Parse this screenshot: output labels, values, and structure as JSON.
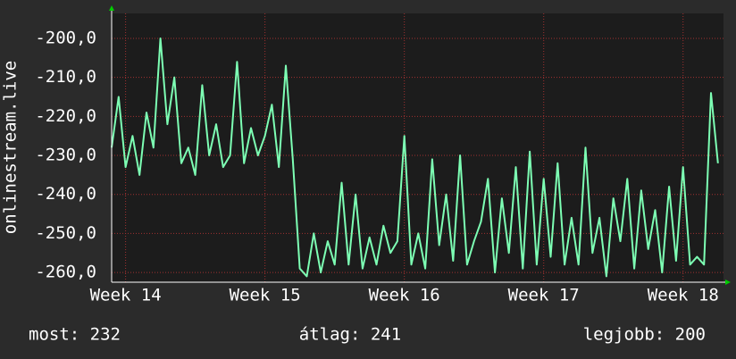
{
  "chart_data": {
    "type": "line",
    "y_label": "onlinestream.live",
    "x": [
      13.9,
      13.95,
      14.0,
      14.05,
      14.1,
      14.15,
      14.2,
      14.25,
      14.3,
      14.35,
      14.4,
      14.45,
      14.5,
      14.55,
      14.6,
      14.65,
      14.7,
      14.75,
      14.8,
      14.85,
      14.9,
      14.95,
      15.0,
      15.05,
      15.1,
      15.15,
      15.2,
      15.25,
      15.3,
      15.35,
      15.4,
      15.45,
      15.5,
      15.55,
      15.6,
      15.65,
      15.7,
      15.75,
      15.8,
      15.85,
      15.9,
      15.95,
      16.0,
      16.05,
      16.1,
      16.15,
      16.2,
      16.25,
      16.3,
      16.35,
      16.4,
      16.45,
      16.5,
      16.55,
      16.6,
      16.65,
      16.7,
      16.75,
      16.8,
      16.85,
      16.9,
      16.95,
      17.0,
      17.05,
      17.1,
      17.15,
      17.2,
      17.25,
      17.3,
      17.35,
      17.4,
      17.45,
      17.5,
      17.55,
      17.6,
      17.65,
      17.7,
      17.75,
      17.8,
      17.85,
      17.9,
      17.95,
      18.0,
      18.05,
      18.1,
      18.15,
      18.2,
      18.25
    ],
    "series": [
      {
        "color": "#7dffb4",
        "values": [
          -228,
          -215,
          -233,
          -225,
          -235,
          -219,
          -228,
          -200,
          -222,
          -210,
          -232,
          -228,
          -235,
          -212,
          -230,
          -222,
          -233,
          -230,
          -206,
          -232,
          -223,
          -230,
          -225,
          -217,
          -233,
          -207,
          -231,
          -259,
          -261,
          -250,
          -260,
          -252,
          -258,
          -237,
          -258,
          -240,
          -259,
          -251,
          -258,
          -248,
          -255,
          -252,
          -225,
          -258,
          -250,
          -259,
          -231,
          -253,
          -240,
          -257,
          -230,
          -258,
          -252,
          -247,
          -236,
          -260,
          -241,
          -255,
          -233,
          -259,
          -229,
          -258,
          -236,
          -256,
          -232,
          -258,
          -246,
          -258,
          -228,
          -255,
          -246,
          -261,
          -241,
          -252,
          -236,
          -259,
          -239,
          -254,
          -244,
          -260,
          -238,
          -257,
          -233,
          -258,
          -256,
          -258,
          -214,
          -232
        ]
      }
    ],
    "xlim": [
      13.9,
      18.29
    ],
    "xticks": [
      {
        "value": 14,
        "label": "Week 14"
      },
      {
        "value": 15,
        "label": "Week 15"
      },
      {
        "value": 16,
        "label": "Week 16"
      },
      {
        "value": 17,
        "label": "Week 17"
      },
      {
        "value": 18,
        "label": "Week 18"
      }
    ],
    "ylim": [
      -262.5,
      -193.6
    ],
    "yticks": [
      {
        "value": -260,
        "label": "-260,0"
      },
      {
        "value": -250,
        "label": "-250,0"
      },
      {
        "value": -240,
        "label": "-240,0"
      },
      {
        "value": -230,
        "label": "-230,0"
      },
      {
        "value": -220,
        "label": "-220,0"
      },
      {
        "value": -210,
        "label": "-210,0"
      },
      {
        "value": -200,
        "label": "-200,0"
      }
    ],
    "grid": true,
    "grid_color": "#a03030",
    "annotations": [
      "most: 232",
      "átlag: 241",
      "legjobb: 200"
    ]
  }
}
